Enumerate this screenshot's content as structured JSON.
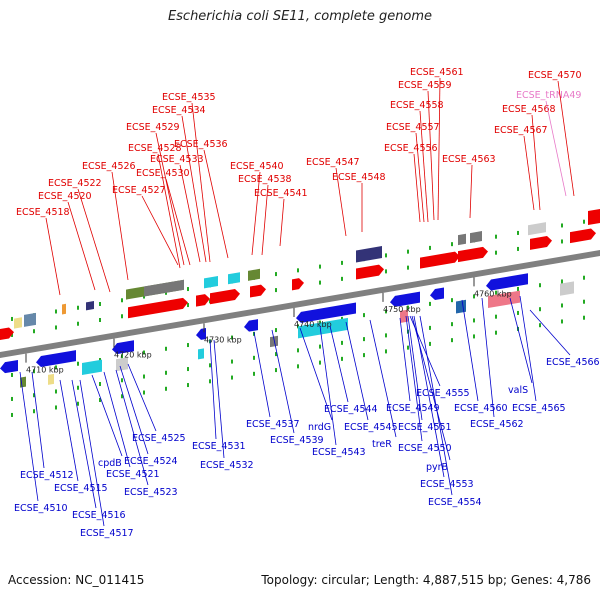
{
  "title": "Escherichia coli SE11, complete genome",
  "footer": {
    "accession": "Accession: NC_011415",
    "summary": "Topology: circular; Length: 4,887,515 bp; Genes: 4,786"
  },
  "colors": {
    "top_label": "#e00000",
    "bottom_label": "#0000cc",
    "trna_label": "#e87ac8",
    "axis": "#808080",
    "tick": "#22aa22"
  },
  "axis_ticks": [
    "4710 kbp",
    "4720 kbp",
    "4730 kbp",
    "4740 kbp",
    "4750 kbp",
    "4760 kbp"
  ],
  "top_labels": [
    "ECSE_4518",
    "ECSE_4520",
    "ECSE_4522",
    "ECSE_4526",
    "ECSE_4527",
    "ECSE_4528",
    "ECSE_4529",
    "ECSE_4530",
    "ECSE_4533",
    "ECSE_4534",
    "ECSE_4535",
    "ECSE_4536",
    "ECSE_4538",
    "ECSE_4540",
    "ECSE_4541",
    "ECSE_4547",
    "ECSE_4548",
    "ECSE_4556",
    "ECSE_4557",
    "ECSE_4558",
    "ECSE_4559",
    "ECSE_4561",
    "ECSE_4563",
    "ECSE_4567",
    "ECSE_4568",
    "ECSE_tRNA49",
    "ECSE_4570"
  ],
  "bottom_labels": [
    "ECSE_4510",
    "ECSE_4512",
    "ECSE_4515",
    "ECSE_4516",
    "ECSE_4517",
    "cpdB",
    "ECSE_4521",
    "ECSE_4523",
    "ECSE_4524",
    "ECSE_4525",
    "ECSE_4531",
    "ECSE_4532",
    "ECSE_4537",
    "ECSE_4539",
    "nrdG",
    "ECSE_4543",
    "ECSE_4544",
    "ECSE_4545",
    "treR",
    "ECSE_4549",
    "ECSE_4550",
    "ECSE_4551",
    "pyrB",
    "ECSE_4553",
    "ECSE_4554",
    "ECSE_4555",
    "ECSE_4560",
    "ECSE_4562",
    "valS",
    "ECSE_4565",
    "ECSE_4566"
  ]
}
